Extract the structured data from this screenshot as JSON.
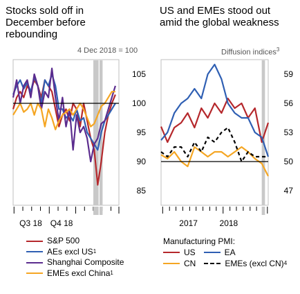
{
  "left_panel": {
    "title": "Stocks sold off in December before rebounding",
    "title_lines": [
      "Stocks sold off in",
      "December before",
      "rebounding"
    ],
    "unit_label": "4 Dec 2018 = 100",
    "legend": [
      {
        "label": "S&P 500",
        "sup": "",
        "color": "#b5282c"
      },
      {
        "label": "AEs excl US",
        "sup": "1",
        "color": "#2f5fb3"
      },
      {
        "label": "Shanghai Composite",
        "sup": "",
        "color": "#5b2c8e"
      },
      {
        "label": "EMEs excl China",
        "sup": "1",
        "color": "#f5a623"
      }
    ]
  },
  "right_panel": {
    "title_lines": [
      "US and EMEs stood out",
      "amid the global weakness"
    ],
    "unit_label": "Diffusion indices",
    "unit_sup": "3",
    "pmi_title": "Manufacturing PMI:",
    "legend": [
      {
        "label": "US",
        "sup": "",
        "color": "#b5282c",
        "dash": false
      },
      {
        "label": "EA",
        "sup": "",
        "color": "#2f5fb3",
        "dash": false
      },
      {
        "label": "CN",
        "sup": "",
        "color": "#f5a623",
        "dash": false
      },
      {
        "label": "EMEs (excl CN)",
        "sup": "4",
        "color": "#000000",
        "dash": true
      }
    ]
  },
  "colors": {
    "sp500": "#b5282c",
    "aes": "#2f5fb3",
    "shanghai": "#5b2c8e",
    "emes": "#f5a623",
    "shade": "#c8c8c8",
    "frame": "#bfbfbf"
  },
  "chart_data": [
    {
      "type": "line",
      "title": "Stocks sold off in December before rebounding",
      "ylabel": "4 Dec 2018 = 100",
      "ylim": [
        82.5,
        107.5
      ],
      "yticks": [
        85,
        90,
        95,
        100,
        105
      ],
      "x_tick_labels": [
        "Q3 18",
        "Q4 18"
      ],
      "xlim": [
        0,
        24
      ],
      "shaded_x": [
        [
          18.2,
          19.4
        ],
        [
          19.6,
          20.3
        ]
      ],
      "reference_y": 100,
      "series": [
        {
          "name": "S&P 500",
          "color": "#b5282c",
          "x": [
            0,
            0.8,
            1.6,
            2.4,
            3.2,
            4,
            4.8,
            5.6,
            6.4,
            7.2,
            8,
            8.8,
            9.6,
            10.4,
            11.2,
            12,
            12.8,
            13.6,
            14.4,
            15.2,
            16,
            16.8,
            17.6,
            18.4,
            19.2,
            20,
            20.8,
            21.6,
            22.4,
            23.2
          ],
          "y": [
            99,
            101,
            102,
            101,
            103,
            102,
            104,
            103,
            101,
            104,
            103,
            102,
            99,
            96,
            98,
            99,
            97,
            100,
            99,
            96,
            100,
            97,
            94,
            92,
            86,
            90,
            95,
            98,
            100,
            101.5
          ]
        },
        {
          "name": "AEs excl US",
          "color": "#2f5fb3",
          "x": [
            0,
            0.8,
            1.6,
            2.4,
            3.2,
            4,
            4.8,
            5.6,
            6.4,
            7.2,
            8,
            8.8,
            9.6,
            10.4,
            11.2,
            12,
            12.8,
            13.6,
            14.4,
            15.2,
            16,
            16.8,
            17.6,
            18.4,
            19.2,
            20,
            20.8,
            21.6,
            22.4,
            23.2
          ],
          "y": [
            101.5,
            103,
            104,
            102.5,
            103.5,
            102,
            104.5,
            103,
            100,
            104,
            103,
            105,
            103,
            99,
            99,
            97.5,
            98,
            97,
            99,
            97,
            97.5,
            95,
            94,
            93,
            92,
            95,
            97,
            98,
            99,
            100
          ]
        },
        {
          "name": "Shanghai Composite",
          "color": "#5b2c8e",
          "x": [
            0,
            0.8,
            1.6,
            2.4,
            3.2,
            4,
            4.8,
            5.6,
            6.4,
            7.2,
            8,
            8.8,
            9.6,
            10.4,
            11.2,
            12,
            12.8,
            13.6,
            14.4,
            15.2,
            16,
            16.8,
            17.6,
            18.4,
            19.2,
            20,
            20.8,
            21.6,
            22.4,
            23.2
          ],
          "y": [
            101,
            104,
            100,
            103,
            104,
            101,
            105,
            103,
            99,
            102,
            101,
            106,
            101,
            97,
            101,
            96,
            99,
            92,
            98,
            95,
            96,
            94,
            90,
            93,
            94,
            96.5,
            97,
            99,
            101,
            103
          ]
        },
        {
          "name": "EMEs excl China",
          "color": "#f5a623",
          "x": [
            0,
            0.8,
            1.6,
            2.4,
            3.2,
            4,
            4.8,
            5.6,
            6.4,
            7.2,
            8,
            8.8,
            9.6,
            10.4,
            11.2,
            12,
            12.8,
            13.6,
            14.4,
            15.2,
            16,
            16.8,
            17.6,
            18.4,
            19.2,
            20,
            20.8,
            21.6,
            22.4,
            23.2
          ],
          "y": [
            98,
            99,
            100,
            98.5,
            99,
            100,
            98,
            100,
            99,
            96,
            99,
            97.5,
            95.5,
            97,
            98,
            98.5,
            99,
            98,
            99,
            100,
            99,
            97.5,
            96,
            96.5,
            98,
            99.5,
            100,
            101,
            102,
            102
          ]
        }
      ]
    },
    {
      "type": "line",
      "title": "US and EMEs stood out amid the global weakness",
      "ylabel": "Diffusion indices",
      "ylim": [
        45.5,
        60.5
      ],
      "yticks": [
        47,
        50,
        53,
        56,
        59
      ],
      "x_tick_labels": [
        "2017",
        "2018"
      ],
      "x_tick_positions": [
        2017,
        2018
      ],
      "xlim": [
        2016.42,
        2019.08
      ],
      "shaded_x": [
        [
          2018.92,
          2019.0
        ]
      ],
      "reference_y": 50,
      "series": [
        {
          "name": "US",
          "color": "#b5282c",
          "x": [
            2016.42,
            2016.58,
            2016.75,
            2016.92,
            2017.08,
            2017.25,
            2017.42,
            2017.58,
            2017.75,
            2017.92,
            2018.08,
            2018.25,
            2018.42,
            2018.58,
            2018.75,
            2018.92,
            2019.08
          ],
          "y": [
            53.6,
            52,
            53.5,
            54,
            55,
            53.5,
            55.5,
            54.5,
            56,
            55,
            56.5,
            55.5,
            56,
            54.5,
            55.5,
            52,
            54
          ]
        },
        {
          "name": "EA",
          "color": "#2f5fb3",
          "x": [
            2016.42,
            2016.58,
            2016.75,
            2016.92,
            2017.08,
            2017.25,
            2017.42,
            2017.58,
            2017.75,
            2017.92,
            2018.08,
            2018.25,
            2018.42,
            2018.58,
            2018.75,
            2018.92,
            2019.08
          ],
          "y": [
            52.2,
            53,
            55,
            56,
            56.5,
            57.5,
            56.5,
            59,
            60,
            58.5,
            56,
            55,
            54.5,
            54.5,
            53,
            52.5,
            50.5
          ]
        },
        {
          "name": "CN",
          "color": "#f5a623",
          "x": [
            2016.42,
            2016.58,
            2016.75,
            2016.92,
            2017.08,
            2017.25,
            2017.42,
            2017.58,
            2017.75,
            2017.92,
            2018.08,
            2018.25,
            2018.42,
            2018.58,
            2018.75,
            2018.92,
            2019.08
          ],
          "y": [
            50.7,
            50.3,
            51,
            50,
            49.5,
            51.5,
            51,
            50.5,
            51,
            51,
            50.5,
            51,
            51.5,
            51,
            50.3,
            49.8,
            48.5
          ]
        },
        {
          "name": "EMEs (excl CN)",
          "color": "#000000",
          "dash": true,
          "x": [
            2016.42,
            2016.58,
            2016.75,
            2016.92,
            2017.08,
            2017.25,
            2017.42,
            2017.58,
            2017.75,
            2017.92,
            2018.08,
            2018.25,
            2018.42,
            2018.58,
            2018.75,
            2018.92,
            2019.08
          ],
          "y": [
            51,
            50.5,
            51.5,
            51.5,
            50.5,
            52,
            51,
            52.5,
            52,
            53,
            53.5,
            52,
            50,
            51,
            50.5,
            50.5,
            50.5
          ]
        }
      ]
    }
  ]
}
